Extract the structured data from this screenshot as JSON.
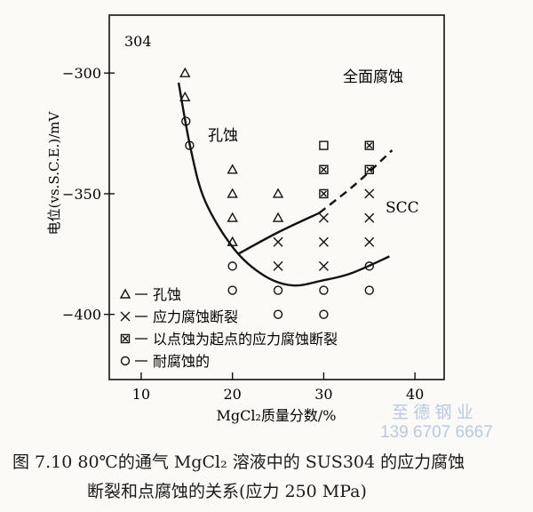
{
  "chart_data": {
    "type": "scatter",
    "panel_label": "304",
    "xlabel": "MgCl₂质量分数/%",
    "ylabel": "电位(vs.S.C.E.)/mV",
    "xlim": [
      6.5,
      43.2
    ],
    "ylim": [
      -427,
      -276
    ],
    "xticks": [
      10,
      20,
      30,
      40
    ],
    "yticks": [
      -300,
      -350,
      -400
    ],
    "grid": false,
    "legend_position": "bottom-left",
    "series": [
      {
        "name": "孔蚀",
        "marker": "triangle",
        "points": [
          [
            14.8,
            -300
          ],
          [
            14.8,
            -310
          ],
          [
            20,
            -340
          ],
          [
            20,
            -350
          ],
          [
            20,
            -360
          ],
          [
            20,
            -370
          ],
          [
            25,
            -350
          ],
          [
            25,
            -360
          ]
        ]
      },
      {
        "name": "应力腐蚀断裂",
        "marker": "cross",
        "points": [
          [
            25,
            -370
          ],
          [
            25,
            -380
          ],
          [
            30,
            -360
          ],
          [
            30,
            -370
          ],
          [
            30,
            -380
          ],
          [
            35,
            -350
          ],
          [
            35,
            -360
          ],
          [
            35,
            -370
          ]
        ]
      },
      {
        "name": "以点蚀为起点的应力腐蚀断裂",
        "marker": "boxed-cross",
        "points": [
          [
            30,
            -340
          ],
          [
            30,
            -350
          ],
          [
            35,
            -330
          ],
          [
            35,
            -340
          ]
        ]
      },
      {
        "name": "耐腐蚀的",
        "marker": "circle",
        "points": [
          [
            14.9,
            -320
          ],
          [
            15.3,
            -330
          ],
          [
            20,
            -380
          ],
          [
            20,
            -390
          ],
          [
            25,
            -390
          ],
          [
            25,
            -400
          ],
          [
            30,
            -390
          ],
          [
            30,
            -400
          ],
          [
            35,
            -380
          ],
          [
            35,
            -390
          ]
        ]
      },
      {
        "marker": "square",
        "points": [
          [
            30,
            -330
          ]
        ]
      }
    ],
    "curves": [
      {
        "style": "solid",
        "points": [
          [
            14.1,
            -304
          ],
          [
            15.4,
            -331
          ],
          [
            17,
            -353
          ],
          [
            20.2,
            -373
          ],
          [
            23.5,
            -384
          ],
          [
            26.6,
            -388
          ],
          [
            29.8,
            -386
          ],
          [
            33,
            -383
          ],
          [
            37.2,
            -376
          ]
        ]
      },
      {
        "style": "solid",
        "points": [
          [
            20.6,
            -375
          ],
          [
            25,
            -366
          ],
          [
            29.5,
            -358
          ]
        ]
      },
      {
        "style": "dashed",
        "points": [
          [
            29.5,
            -358
          ],
          [
            33.5,
            -346
          ],
          [
            37.5,
            -332
          ]
        ]
      }
    ],
    "annotations": [
      "全面腐蚀",
      "孔蚀",
      "SCC"
    ]
  },
  "caption": {
    "line1": "图 7.10   80℃的通气 MgCl₂ 溶液中的 SUS304 的应力腐蚀",
    "line2": "断裂和点腐蚀的关系(应力 250 MPa)"
  },
  "watermark": {
    "name": "至 德 钢 业",
    "phone": "139 6707 6667",
    "color": "#b9c8e6"
  }
}
